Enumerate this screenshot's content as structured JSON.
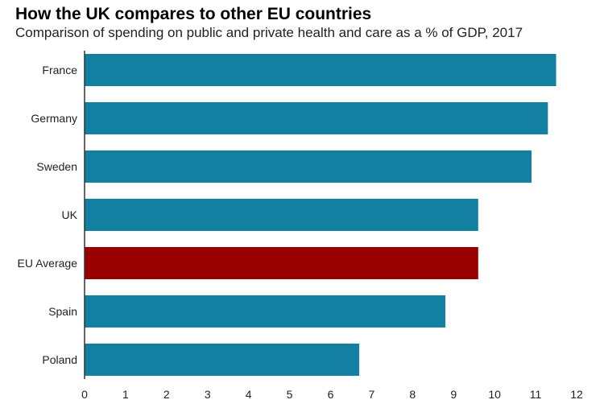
{
  "chart_data": {
    "type": "bar",
    "orientation": "horizontal",
    "title": "How the UK compares to other EU countries",
    "subtitle": "Comparison of spending on public and private health and care as a % of GDP, 2017",
    "categories": [
      "France",
      "Germany",
      "Sweden",
      "UK",
      "EU Average",
      "Spain",
      "Poland"
    ],
    "values": [
      11.5,
      11.3,
      10.9,
      9.6,
      9.6,
      8.8,
      6.7
    ],
    "highlight": "EU Average",
    "xlim": [
      0,
      12
    ],
    "xticks": [
      0,
      1,
      2,
      3,
      4,
      5,
      6,
      7,
      8,
      9,
      10,
      11,
      12
    ],
    "xlabel": "",
    "ylabel": "",
    "grid": false,
    "colors": {
      "bar": "#1380a1",
      "highlight": "#990000",
      "axis": "#333333"
    }
  }
}
